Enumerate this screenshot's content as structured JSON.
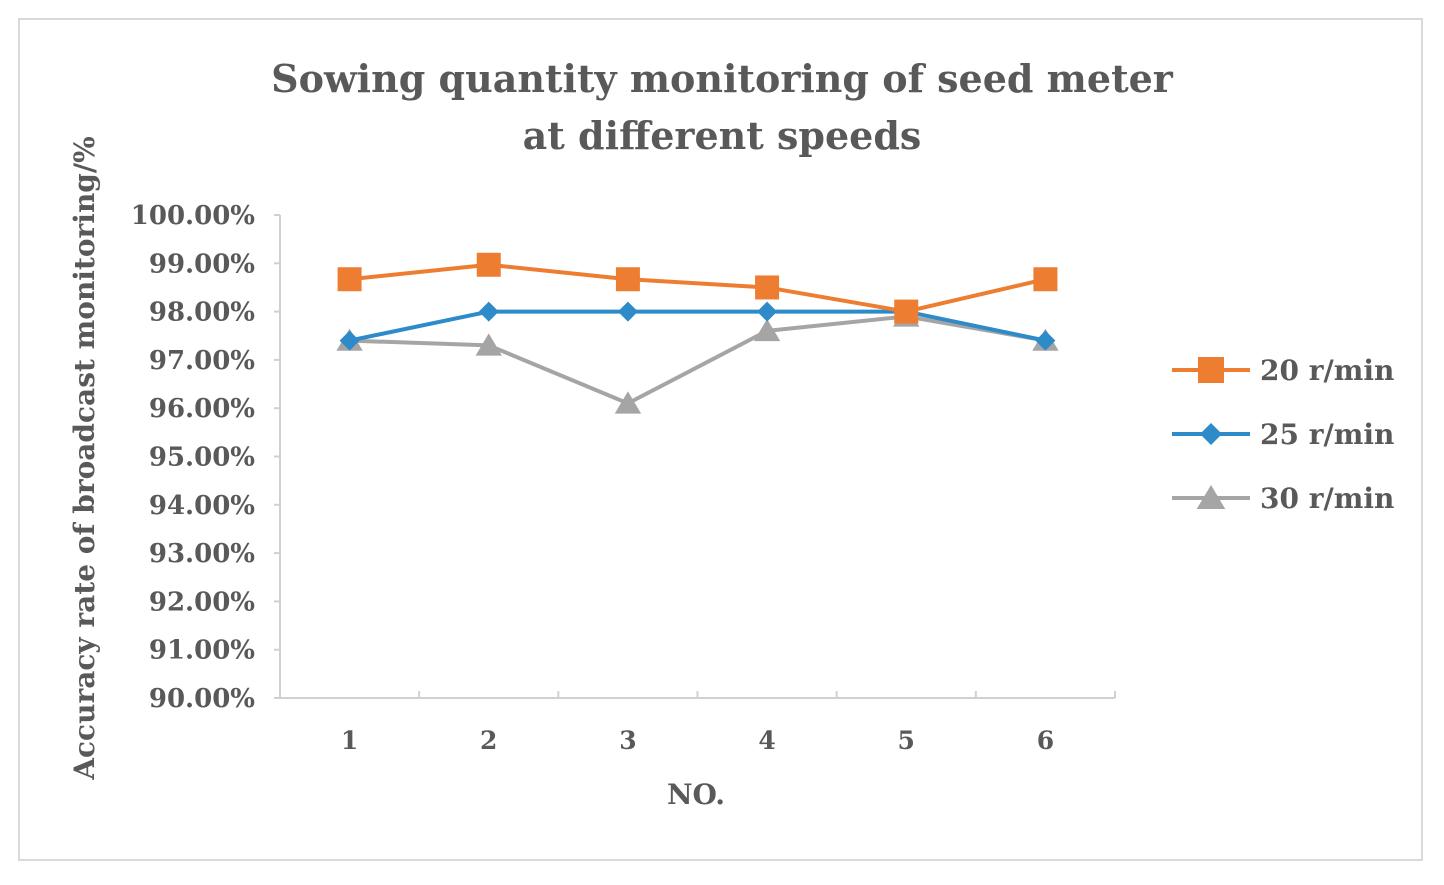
{
  "chart_data": {
    "type": "line",
    "title_lines": [
      "Sowing quantity monitoring of seed meter",
      "at different speeds"
    ],
    "xlabel": "NO.",
    "ylabel": "Accuracy rate of broadcast monitoring/%",
    "categories": [
      "1",
      "2",
      "3",
      "4",
      "5",
      "6"
    ],
    "ylim": [
      90,
      100
    ],
    "ytick_values": [
      90,
      91,
      92,
      93,
      94,
      95,
      96,
      97,
      98,
      99,
      100
    ],
    "ytick_labels": [
      "90.00%",
      "91.00%",
      "92.00%",
      "93.00%",
      "94.00%",
      "95.00%",
      "96.00%",
      "97.00%",
      "98.00%",
      "99.00%",
      "100.00%"
    ],
    "legend_position": "right",
    "series": [
      {
        "name": "20 r/min",
        "color": "#ed7d31",
        "marker": "square",
        "values": [
          98.67,
          98.97,
          98.67,
          98.5,
          98.0,
          98.67
        ]
      },
      {
        "name": "25 r/min",
        "color": "#2e8bc9",
        "marker": "diamond",
        "values": [
          97.4,
          98.0,
          98.0,
          98.0,
          98.0,
          97.4
        ]
      },
      {
        "name": "30 r/min",
        "color": "#a5a5a5",
        "marker": "triangle",
        "values": [
          97.4,
          97.3,
          96.1,
          97.6,
          97.9,
          97.4
        ]
      }
    ]
  }
}
